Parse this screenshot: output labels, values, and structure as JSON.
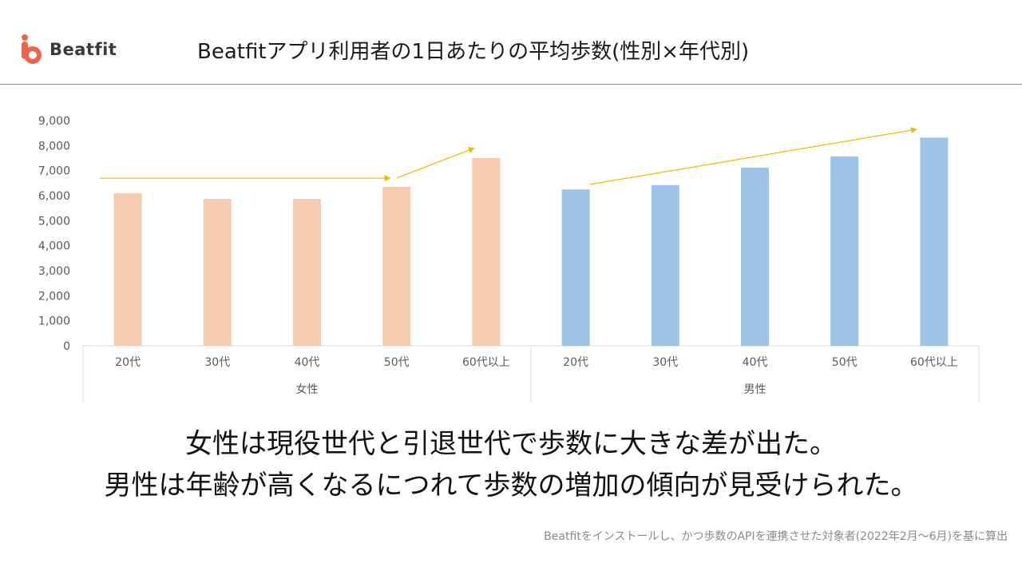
{
  "logo": {
    "name": "Beatfit",
    "accent": "#f0624a"
  },
  "title": "Beatfitアプリ利用者の1日あたりの平均歩数(性別×年代別)",
  "chart_data": {
    "type": "bar",
    "groups": [
      {
        "name": "女性",
        "color": "#f7cbb0",
        "categories": [
          "20代",
          "30代",
          "40代",
          "50代",
          "60代以上"
        ],
        "values": [
          6100,
          5870,
          5870,
          6350,
          7500
        ]
      },
      {
        "name": "男性",
        "color": "#9dc3e6",
        "categories": [
          "20代",
          "30代",
          "40代",
          "50代",
          "60代以上"
        ],
        "values": [
          6250,
          6420,
          7120,
          7570,
          8320
        ]
      }
    ],
    "yticks": [
      "0",
      "1,000",
      "2,000",
      "3,000",
      "4,000",
      "5,000",
      "6,000",
      "7,000",
      "8,000",
      "9,000"
    ],
    "ylim": [
      0,
      9000
    ],
    "grid": false,
    "annotations": {
      "color": "#f2b800",
      "female_trend": {
        "flat_level": 6700,
        "end_value": 7900
      },
      "male_trend": {
        "start_value": 6450,
        "end_value": 8650
      }
    }
  },
  "conclusion": {
    "line1": "女性は現役世代と引退世代で歩数に大きな差が出た。",
    "line2": "男性は年齢が高くなるにつれて歩数の増加の傾向が見受けられた。"
  },
  "footnote": "Beatfitをインストールし、かつ歩数のAPIを連携させた対象者(2022年2月～6月)を基に算出"
}
